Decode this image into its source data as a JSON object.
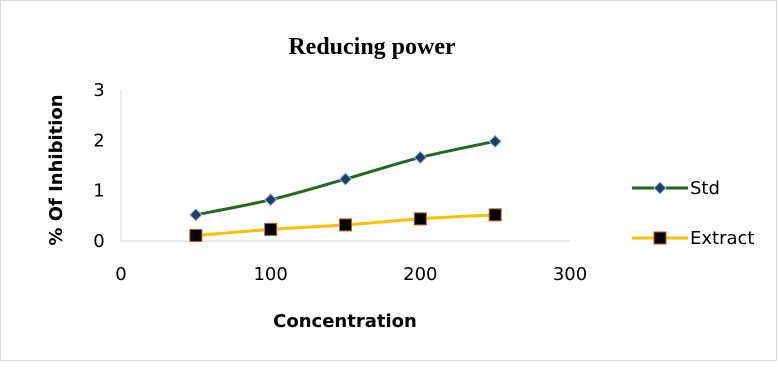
{
  "chart_data": {
    "type": "line",
    "title": "Reducing power",
    "xlabel": "Concentration",
    "ylabel": "% Of Inhibition",
    "xlim": [
      0,
      300
    ],
    "ylim": [
      0,
      3
    ],
    "x_ticks": [
      0,
      100,
      200,
      300
    ],
    "y_ticks": [
      0,
      1,
      2,
      3
    ],
    "grid": false,
    "legend_position": "right",
    "x": [
      50,
      100,
      150,
      200,
      250
    ],
    "series": [
      {
        "name": "Std",
        "values": [
          0.52,
          0.82,
          1.23,
          1.66,
          1.98
        ],
        "color": "#1e6b1e",
        "marker": "diamond",
        "marker_color": "#1f3d6b"
      },
      {
        "name": "Extract",
        "values": [
          0.11,
          0.23,
          0.32,
          0.44,
          0.52
        ],
        "color": "#ffc000",
        "marker": "square",
        "marker_color": "#000000"
      }
    ]
  }
}
